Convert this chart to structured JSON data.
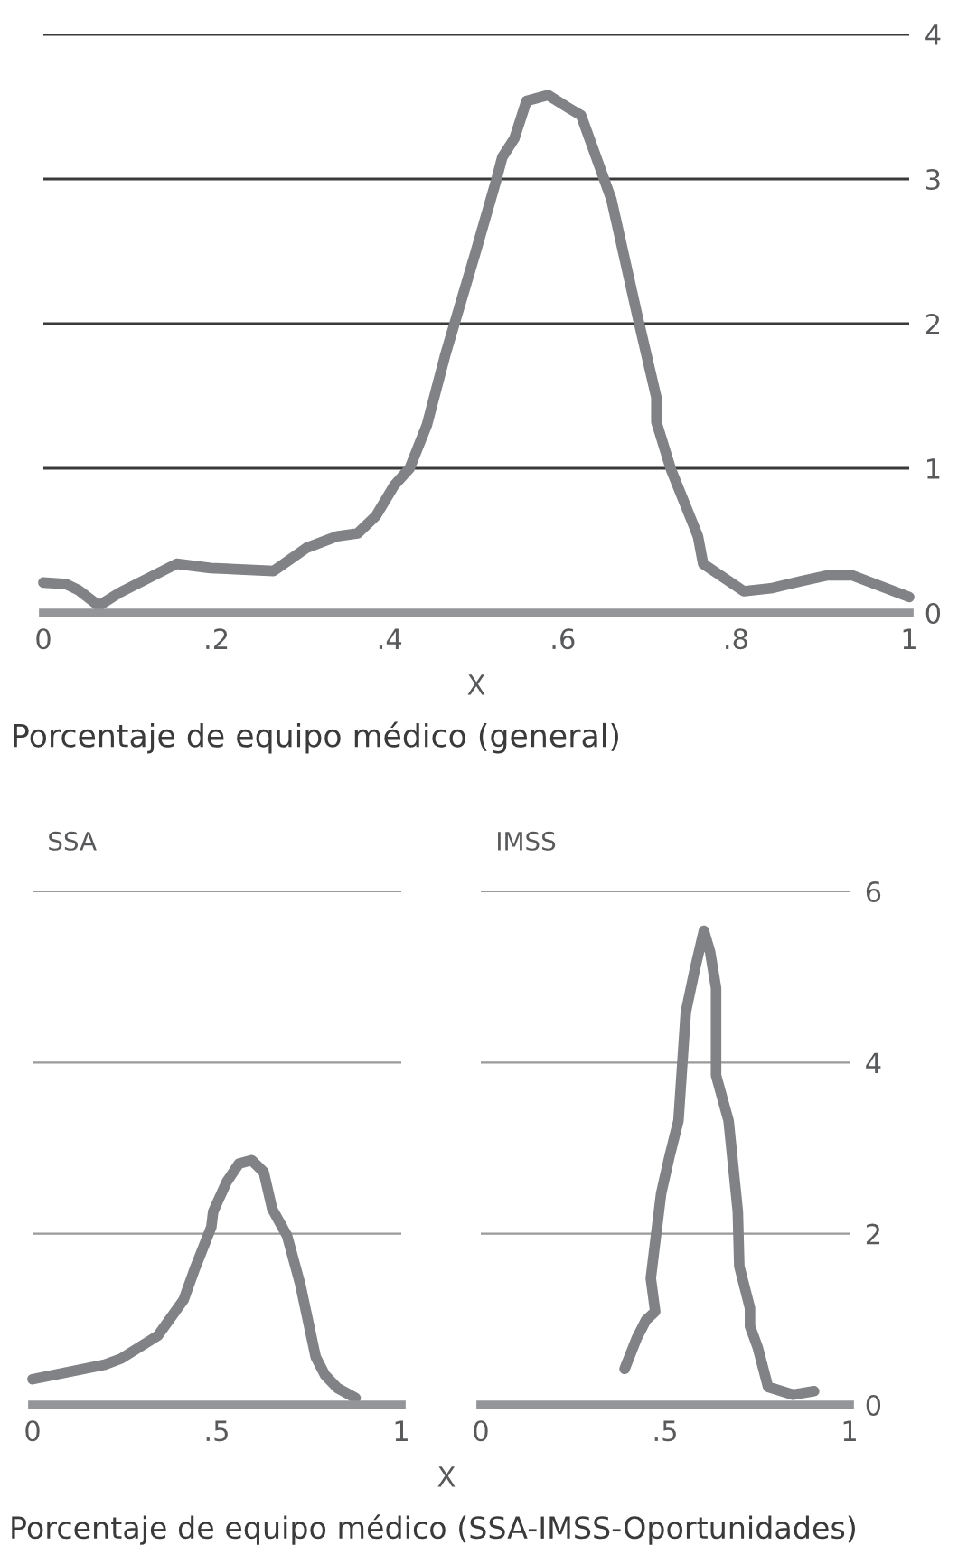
{
  "chart_data": [
    {
      "type": "line",
      "xlabel": "X",
      "annotations": [
        "Porcentaje de equipo médico (general)"
      ],
      "grid": "y",
      "legend": false,
      "marker": "none",
      "line_style": "solid",
      "xlim": [
        0,
        1
      ],
      "ylim": [
        0,
        4
      ],
      "xticks": [
        0,
        {
          "value": 0.2,
          "label": ".2"
        },
        {
          "value": 0.4,
          "label": ".4"
        },
        {
          "value": 0.6,
          "label": ".6"
        },
        {
          "value": 0.8,
          "label": ".8"
        },
        1
      ],
      "yticks": [
        0,
        1,
        2,
        3,
        4
      ],
      "series": [
        {
          "color": "#808285",
          "x": [
            0,
            0.026,
            0.04,
            0.064,
            0.088,
            0.154,
            0.193,
            0.266,
            0.304,
            0.339,
            0.363,
            0.384,
            0.405,
            0.423,
            0.443,
            0.464,
            0.499,
            0.523,
            0.53,
            0.544,
            0.558,
            0.583,
            0.607,
            0.621,
            0.656,
            0.687,
            0.708,
            0.708,
            0.725,
            0.756,
            0.762,
            0.809,
            0.84,
            0.875,
            0.906,
            0.934,
            1.0
          ],
          "values": [
            0.21,
            0.2,
            0.16,
            0.05,
            0.14,
            0.34,
            0.31,
            0.29,
            0.45,
            0.53,
            0.55,
            0.67,
            0.88,
            1.0,
            1.3,
            1.78,
            2.49,
            2.99,
            3.15,
            3.28,
            3.54,
            3.58,
            3.49,
            3.44,
            2.86,
            2.03,
            1.49,
            1.32,
            0.99,
            0.53,
            0.34,
            0.15,
            0.17,
            0.22,
            0.26,
            0.26,
            0.11
          ]
        }
      ]
    },
    {
      "type": "line",
      "title": "SSA",
      "grid": "y",
      "legend": false,
      "marker": "none",
      "line_style": "solid",
      "tick_labels": "x",
      "xlim": [
        0,
        1
      ],
      "ylim": [
        0,
        6
      ],
      "xticks": [
        0,
        {
          "value": 0.5,
          "label": ".5"
        },
        1
      ],
      "yticks": [
        0,
        2,
        4,
        6
      ],
      "series": [
        {
          "color": "#808285",
          "x": [
            0,
            0.196,
            0.24,
            0.34,
            0.41,
            0.44,
            0.485,
            0.49,
            0.527,
            0.56,
            0.594,
            0.627,
            0.65,
            0.69,
            0.726,
            0.768,
            0.793,
            0.826,
            0.876
          ],
          "values": [
            0.3,
            0.47,
            0.54,
            0.81,
            1.23,
            1.59,
            2.08,
            2.26,
            2.61,
            2.82,
            2.86,
            2.72,
            2.29,
            1.98,
            1.41,
            0.56,
            0.35,
            0.2,
            0.08
          ]
        }
      ]
    },
    {
      "type": "line",
      "title": "IMSS",
      "xlabel": "X",
      "annotations": [
        "Porcentaje de equipo médico (SSA-IMSS-Oportunidades)"
      ],
      "grid": "y",
      "legend": false,
      "marker": "none",
      "line_style": "solid",
      "xlim": [
        0,
        1
      ],
      "ylim": [
        0,
        6
      ],
      "xticks": [
        0,
        {
          "value": 0.5,
          "label": ".5"
        },
        1
      ],
      "yticks": [
        0,
        2,
        4,
        6
      ],
      "series": [
        {
          "color": "#808285",
          "x": [
            0.39,
            0.423,
            0.448,
            0.473,
            0.461,
            0.489,
            0.511,
            0.536,
            0.556,
            0.58,
            0.605,
            0.622,
            0.638,
            0.638,
            0.672,
            0.697,
            0.701,
            0.73,
            0.73,
            0.751,
            0.779,
            0.846,
            0.904
          ],
          "values": [
            0.42,
            0.78,
            0.99,
            1.09,
            1.48,
            2.47,
            2.89,
            3.32,
            4.59,
            5.08,
            5.54,
            5.29,
            4.87,
            3.85,
            3.32,
            2.26,
            1.62,
            1.13,
            0.92,
            0.67,
            0.21,
            0.12,
            0.16
          ]
        }
      ]
    }
  ]
}
